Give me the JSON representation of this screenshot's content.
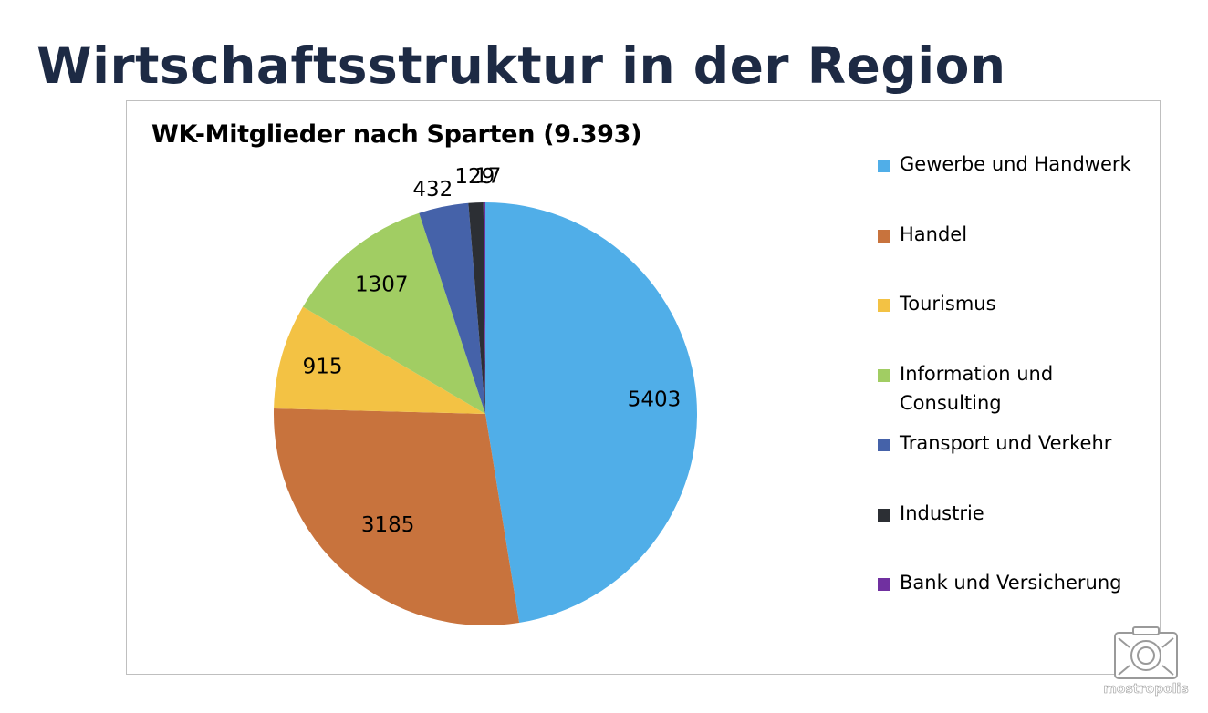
{
  "slide": {
    "title": "Wirtschaftsstruktur in der Region"
  },
  "chart_data": {
    "type": "pie",
    "title": "WK-Mitglieder nach Sparten (9.393)",
    "categories": [
      "Gewerbe und Handwerk",
      "Handel",
      "Tourismus",
      "Information und Consulting",
      "Transport und Verkehr",
      "Industrie",
      "Bank und Versicherung"
    ],
    "values": [
      5403,
      3185,
      915,
      1307,
      432,
      129,
      17
    ],
    "data_labels": [
      "5403",
      "3185",
      "915",
      "1307",
      "432",
      "129",
      "17"
    ],
    "colors": [
      "#50aee8",
      "#c8733d",
      "#f3c244",
      "#a1cd63",
      "#4562a9",
      "#2c2f34",
      "#7030a0"
    ],
    "legend_position": "right"
  },
  "watermark": {
    "text": "mostropolis"
  }
}
